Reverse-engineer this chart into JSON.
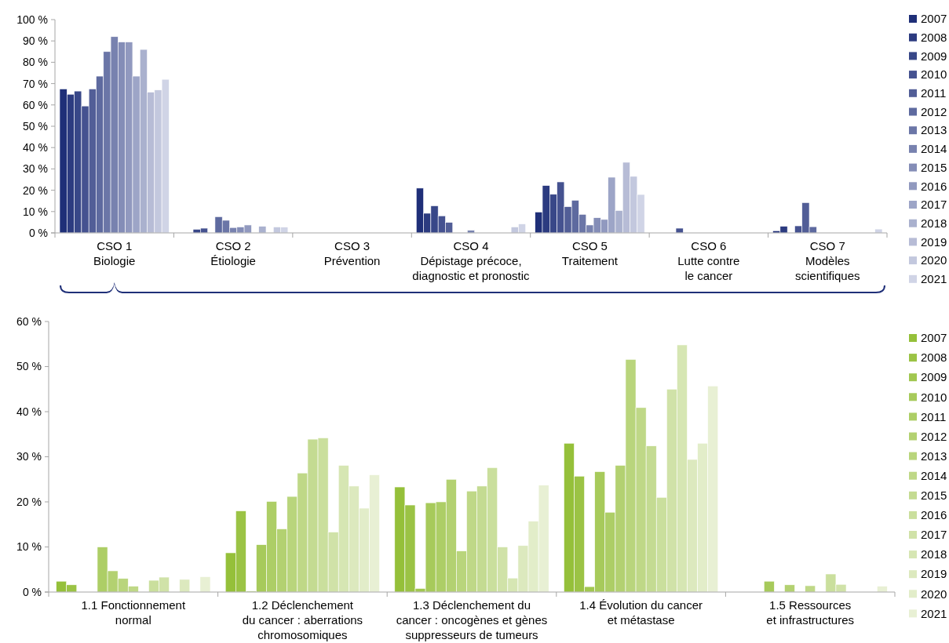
{
  "chart_data": [
    {
      "type": "bar",
      "categories": [
        "CSO 1\nBiologie",
        "CSO 2\nÉtiologie",
        "CSO 3\nPrévention",
        "CSO 4\nDépistage précoce,\ndiagnostic et pronostic",
        "CSO 5\nTraitement",
        "CSO 6\nLutte contre\nle cancer",
        "CSO 7\nModèles\nscientifiques"
      ],
      "ylim": [
        0,
        100
      ],
      "yticks": [
        {
          "value": 0,
          "label": "0 %"
        },
        {
          "value": 10,
          "label": "10 %"
        },
        {
          "value": 20,
          "label": "20 %"
        },
        {
          "value": 30,
          "label": "30 %"
        },
        {
          "value": 40,
          "label": "40 %"
        },
        {
          "value": 50,
          "label": "50 %"
        },
        {
          "value": 60,
          "label": "60 %"
        },
        {
          "value": 70,
          "label": "70 %"
        },
        {
          "value": 80,
          "label": "80 %"
        },
        {
          "value": 90,
          "label": "90 %"
        },
        {
          "value": 100,
          "label": "100 %"
        }
      ],
      "grid": false,
      "legend": "right",
      "series": [
        {
          "name": "2007",
          "color": "#1f2f78",
          "values": [
            67.5,
            0,
            0,
            21,
            9.8,
            0,
            1.0
          ]
        },
        {
          "name": "2008",
          "color": "#2c3b80",
          "values": [
            65,
            0,
            0,
            9.2,
            22.2,
            0,
            3.1
          ]
        },
        {
          "name": "2009",
          "color": "#384788",
          "values": [
            66.5,
            1.7,
            0,
            12.7,
            18.1,
            0,
            0
          ]
        },
        {
          "name": "2010",
          "color": "#455290",
          "values": [
            59.5,
            2.2,
            0,
            8.0,
            23.9,
            2.2,
            3.3
          ]
        },
        {
          "name": "2011",
          "color": "#525e97",
          "values": [
            67.5,
            0,
            0,
            4.9,
            12.3,
            0,
            14.2
          ]
        },
        {
          "name": "2012",
          "color": "#5e6a9f",
          "values": [
            73.5,
            7.6,
            0,
            0,
            15.3,
            0,
            2.9
          ]
        },
        {
          "name": "2013",
          "color": "#6b76a7",
          "values": [
            85,
            5.9,
            0,
            0,
            8.7,
            0,
            0
          ]
        },
        {
          "name": "2014",
          "color": "#7882af",
          "values": [
            92,
            2.5,
            0,
            1.2,
            3.7,
            0,
            0
          ]
        },
        {
          "name": "2015",
          "color": "#848db7",
          "values": [
            89.5,
            2.8,
            0,
            0,
            7.1,
            0,
            0
          ]
        },
        {
          "name": "2016",
          "color": "#9199bf",
          "values": [
            89.5,
            3.7,
            0,
            0,
            6.3,
            0,
            0
          ]
        },
        {
          "name": "2017",
          "color": "#9da5c7",
          "values": [
            73.5,
            0,
            0,
            0,
            26.1,
            0,
            0
          ]
        },
        {
          "name": "2018",
          "color": "#aab1ce",
          "values": [
            86,
            3.1,
            0,
            0,
            10.5,
            0,
            0
          ]
        },
        {
          "name": "2019",
          "color": "#b7bcd6",
          "values": [
            66,
            0,
            0,
            0,
            33.1,
            0,
            0
          ]
        },
        {
          "name": "2020",
          "color": "#c3c8de",
          "values": [
            67,
            2.8,
            0,
            2.8,
            26.5,
            0,
            0
          ]
        },
        {
          "name": "2021",
          "color": "#d0d4e6",
          "values": [
            72,
            2.7,
            0,
            4.2,
            18.0,
            0,
            1.8
          ]
        }
      ]
    },
    {
      "type": "bar",
      "categories": [
        "1.1  Fonctionnement\nnormal",
        "1.2 Déclenchement\ndu cancer : aberrations\nchromosomiques",
        "1.3 Déclenchement du\ncancer : oncogènes et gènes\nsuppresseurs de tumeurs",
        "1.4  Évolution du cancer\net métastase",
        "1.5 Ressources\net infrastructures"
      ],
      "ylim": [
        0,
        60
      ],
      "yticks": [
        {
          "value": 0,
          "label": "0 %"
        },
        {
          "value": 10,
          "label": "10 %"
        },
        {
          "value": 20,
          "label": "20 %"
        },
        {
          "value": 30,
          "label": "30 %"
        },
        {
          "value": 40,
          "label": "40 %"
        },
        {
          "value": 50,
          "label": "50 %"
        },
        {
          "value": 60,
          "label": "60 %"
        }
      ],
      "grid": false,
      "legend": "right",
      "series": [
        {
          "name": "2007",
          "color": "#95c03a",
          "values": [
            2.4,
            8.7,
            23.3,
            33.0,
            0
          ]
        },
        {
          "name": "2008",
          "color": "#9bc345",
          "values": [
            1.6,
            18.0,
            19.3,
            25.7,
            0
          ]
        },
        {
          "name": "2009",
          "color": "#a1c750",
          "values": [
            0,
            0.2,
            0.8,
            1.2,
            0
          ]
        },
        {
          "name": "2010",
          "color": "#a7ca5b",
          "values": [
            0,
            10.5,
            19.8,
            26.7,
            2.4
          ]
        },
        {
          "name": "2011",
          "color": "#adce66",
          "values": [
            10.0,
            20.1,
            20.0,
            17.7,
            0
          ]
        },
        {
          "name": "2012",
          "color": "#b3d171",
          "values": [
            4.7,
            14.0,
            25.0,
            28.1,
            1.6
          ]
        },
        {
          "name": "2013",
          "color": "#b9d57c",
          "values": [
            3.0,
            21.2,
            9.1,
            51.6,
            0
          ]
        },
        {
          "name": "2014",
          "color": "#bfd887",
          "values": [
            1.3,
            26.4,
            22.4,
            40.9,
            1.4
          ]
        },
        {
          "name": "2015",
          "color": "#c4db92",
          "values": [
            0,
            33.9,
            23.5,
            32.4,
            0
          ]
        },
        {
          "name": "2016",
          "color": "#cadf9d",
          "values": [
            2.6,
            34.2,
            27.6,
            21.0,
            4.0
          ]
        },
        {
          "name": "2017",
          "color": "#d0e2a8",
          "values": [
            3.3,
            13.3,
            10.0,
            45.0,
            1.7
          ]
        },
        {
          "name": "2018",
          "color": "#d6e6b3",
          "values": [
            0,
            28.1,
            3.1,
            54.8,
            0
          ]
        },
        {
          "name": "2019",
          "color": "#dce9be",
          "values": [
            2.8,
            23.5,
            10.3,
            29.4,
            0
          ]
        },
        {
          "name": "2020",
          "color": "#e2edc9",
          "values": [
            0,
            18.6,
            15.7,
            33.0,
            0
          ]
        },
        {
          "name": "2021",
          "color": "#e8f0d4",
          "values": [
            3.4,
            26.0,
            23.7,
            45.7,
            1.3
          ]
        }
      ]
    }
  ]
}
